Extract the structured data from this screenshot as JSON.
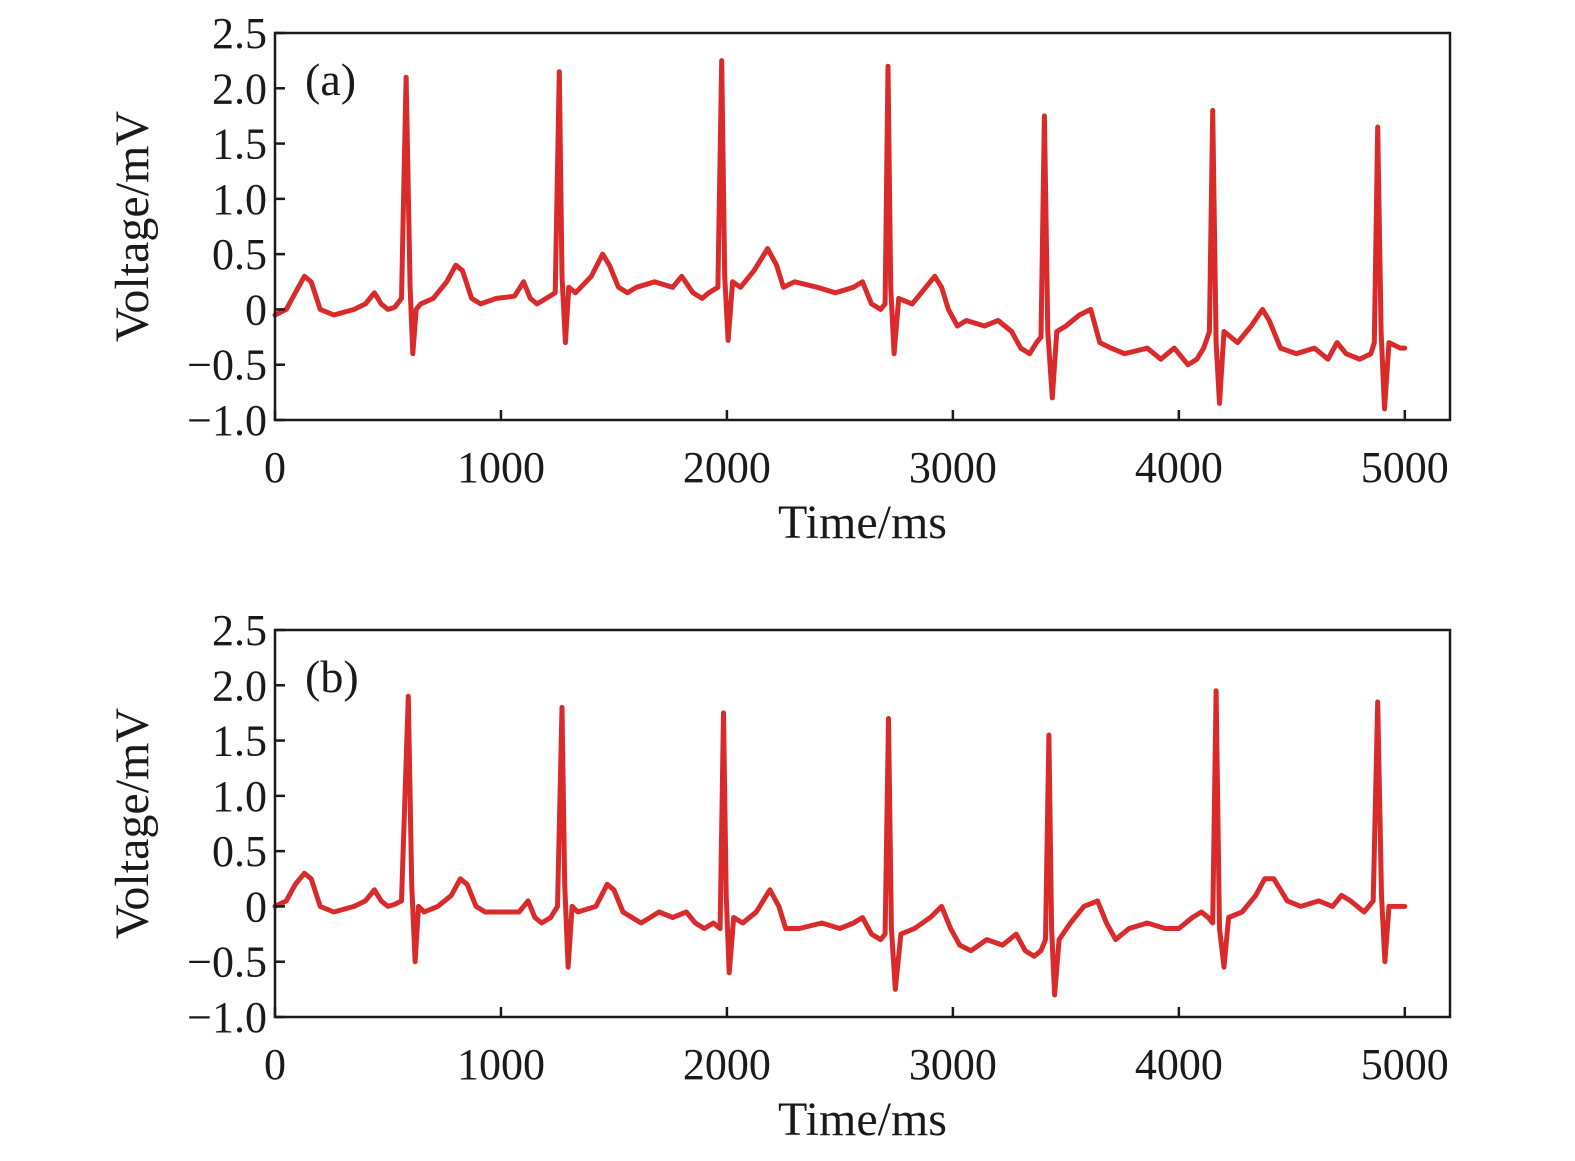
{
  "figure": {
    "background": "#ffffff",
    "line_color": "#d92b2b",
    "axis_color": "#1a1a1a"
  },
  "chart_data": [
    {
      "type": "line",
      "panel_label": "(a)",
      "title": "",
      "xlabel": "Time/ms",
      "ylabel": "Voltage/mV",
      "xlim": [
        0,
        5200
      ],
      "ylim": [
        -1.0,
        2.5
      ],
      "xticks": [
        0,
        1000,
        2000,
        3000,
        4000,
        5000
      ],
      "xtick_labels": [
        "0",
        "1000",
        "2000",
        "3000",
        "4000",
        "5000"
      ],
      "yticks": [
        2.5,
        2.0,
        1.5,
        1.0,
        0.5,
        0,
        -0.5,
        -1.0
      ],
      "ytick_labels": [
        "2.5",
        "2.0",
        "1.5",
        "1.0",
        "0.5",
        "0",
        "−0.5",
        "−1.0"
      ],
      "grid": false,
      "series": [
        {
          "color": "#d92b2b",
          "x": [
            0,
            50,
            90,
            130,
            160,
            200,
            260,
            350,
            400,
            440,
            470,
            500,
            530,
            560,
            580,
            598,
            610,
            625,
            645,
            700,
            760,
            800,
            830,
            870,
            910,
            980,
            1060,
            1100,
            1130,
            1160,
            1200,
            1240,
            1258,
            1270,
            1285,
            1300,
            1330,
            1400,
            1450,
            1480,
            1520,
            1560,
            1600,
            1680,
            1760,
            1800,
            1850,
            1890,
            1920,
            1960,
            1977,
            1990,
            2005,
            2025,
            2060,
            2120,
            2180,
            2220,
            2250,
            2300,
            2400,
            2480,
            2560,
            2600,
            2640,
            2680,
            2700,
            2713,
            2725,
            2740,
            2760,
            2820,
            2880,
            2920,
            2950,
            2980,
            3020,
            3060,
            3140,
            3200,
            3260,
            3300,
            3340,
            3370,
            3390,
            3405,
            3420,
            3440,
            3460,
            3500,
            3560,
            3610,
            3650,
            3700,
            3760,
            3860,
            3920,
            3980,
            4040,
            4080,
            4110,
            4135,
            4150,
            4165,
            4180,
            4200,
            4260,
            4320,
            4370,
            4400,
            4450,
            4520,
            4600,
            4660,
            4700,
            4740,
            4800,
            4850,
            4865,
            4880,
            4895,
            4910,
            4930,
            4980,
            5000
          ],
          "y": [
            -0.05,
            0.0,
            0.15,
            0.3,
            0.25,
            0.0,
            -0.05,
            0.0,
            0.05,
            0.15,
            0.05,
            0.0,
            0.02,
            0.1,
            2.1,
            0.2,
            -0.4,
            0.0,
            0.05,
            0.1,
            0.25,
            0.4,
            0.35,
            0.1,
            0.05,
            0.1,
            0.12,
            0.25,
            0.1,
            0.05,
            0.1,
            0.15,
            2.15,
            0.3,
            -0.3,
            0.2,
            0.15,
            0.3,
            0.5,
            0.4,
            0.2,
            0.15,
            0.2,
            0.25,
            0.2,
            0.3,
            0.15,
            0.1,
            0.15,
            0.2,
            2.25,
            0.3,
            -0.28,
            0.25,
            0.2,
            0.35,
            0.55,
            0.4,
            0.2,
            0.25,
            0.2,
            0.15,
            0.2,
            0.25,
            0.05,
            0.0,
            0.05,
            2.2,
            0.2,
            -0.4,
            0.1,
            0.05,
            0.2,
            0.3,
            0.2,
            0.0,
            -0.15,
            -0.1,
            -0.15,
            -0.1,
            -0.2,
            -0.35,
            -0.4,
            -0.3,
            -0.25,
            1.75,
            -0.2,
            -0.8,
            -0.2,
            -0.15,
            -0.05,
            0.0,
            -0.3,
            -0.35,
            -0.4,
            -0.35,
            -0.45,
            -0.35,
            -0.5,
            -0.45,
            -0.35,
            -0.2,
            1.8,
            -0.3,
            -0.85,
            -0.2,
            -0.3,
            -0.15,
            0.0,
            -0.1,
            -0.35,
            -0.4,
            -0.35,
            -0.45,
            -0.3,
            -0.4,
            -0.45,
            -0.4,
            -0.3,
            1.65,
            -0.2,
            -0.9,
            -0.3,
            -0.35,
            -0.35
          ]
        }
      ]
    },
    {
      "type": "line",
      "panel_label": "(b)",
      "title": "",
      "xlabel": "Time/ms",
      "ylabel": "Voltage/mV",
      "xlim": [
        0,
        5200
      ],
      "ylim": [
        -1.0,
        2.5
      ],
      "xticks": [
        0,
        1000,
        2000,
        3000,
        4000,
        5000
      ],
      "xtick_labels": [
        "0",
        "1000",
        "2000",
        "3000",
        "4000",
        "5000"
      ],
      "yticks": [
        2.5,
        2.0,
        1.5,
        1.0,
        0.5,
        0,
        -0.5,
        -1.0
      ],
      "ytick_labels": [
        "2.5",
        "2.0",
        "1.5",
        "1.0",
        "0.5",
        "0",
        "−0.5",
        "−1.0"
      ],
      "grid": false,
      "series": [
        {
          "color": "#d92b2b",
          "x": [
            0,
            50,
            90,
            130,
            160,
            200,
            260,
            350,
            400,
            440,
            470,
            500,
            530,
            560,
            590,
            605,
            620,
            635,
            660,
            720,
            780,
            820,
            850,
            890,
            930,
            1000,
            1080,
            1120,
            1150,
            1180,
            1220,
            1250,
            1270,
            1282,
            1297,
            1315,
            1340,
            1420,
            1470,
            1500,
            1540,
            1580,
            1620,
            1700,
            1760,
            1820,
            1860,
            1900,
            1940,
            1970,
            1985,
            1997,
            2010,
            2030,
            2070,
            2130,
            2190,
            2230,
            2260,
            2320,
            2420,
            2500,
            2560,
            2600,
            2640,
            2680,
            2700,
            2715,
            2728,
            2745,
            2770,
            2830,
            2900,
            2950,
            2990,
            3030,
            3080,
            3150,
            3220,
            3280,
            3320,
            3360,
            3390,
            3410,
            3425,
            3437,
            3450,
            3470,
            3520,
            3580,
            3640,
            3680,
            3720,
            3780,
            3860,
            3940,
            4000,
            4060,
            4100,
            4130,
            4150,
            4165,
            4180,
            4200,
            4220,
            4280,
            4340,
            4380,
            4420,
            4480,
            4540,
            4620,
            4680,
            4720,
            4760,
            4820,
            4860,
            4880,
            4897,
            4912,
            4930,
            4960,
            5000
          ],
          "y": [
            0.0,
            0.05,
            0.2,
            0.3,
            0.25,
            0.0,
            -0.05,
            0.0,
            0.05,
            0.15,
            0.05,
            0.0,
            0.02,
            0.05,
            1.9,
            0.2,
            -0.5,
            0.0,
            -0.05,
            0.0,
            0.1,
            0.25,
            0.2,
            0.0,
            -0.05,
            -0.05,
            -0.05,
            0.05,
            -0.1,
            -0.15,
            -0.1,
            0.0,
            1.8,
            0.2,
            -0.55,
            0.0,
            -0.05,
            0.0,
            0.2,
            0.15,
            -0.05,
            -0.1,
            -0.15,
            -0.05,
            -0.1,
            -0.05,
            -0.15,
            -0.2,
            -0.15,
            -0.2,
            1.75,
            0.1,
            -0.6,
            -0.1,
            -0.15,
            -0.05,
            0.15,
            0.0,
            -0.2,
            -0.2,
            -0.15,
            -0.2,
            -0.15,
            -0.1,
            -0.25,
            -0.3,
            -0.25,
            1.7,
            -0.2,
            -0.75,
            -0.25,
            -0.2,
            -0.1,
            0.0,
            -0.2,
            -0.35,
            -0.4,
            -0.3,
            -0.35,
            -0.25,
            -0.4,
            -0.45,
            -0.4,
            -0.3,
            1.55,
            -0.2,
            -0.8,
            -0.3,
            -0.15,
            0.0,
            0.05,
            -0.15,
            -0.3,
            -0.2,
            -0.15,
            -0.2,
            -0.2,
            -0.1,
            -0.05,
            -0.1,
            -0.15,
            1.95,
            -0.2,
            -0.55,
            -0.1,
            -0.05,
            0.1,
            0.25,
            0.25,
            0.05,
            0.0,
            0.05,
            0.0,
            0.1,
            0.05,
            -0.05,
            0.05,
            1.85,
            0.1,
            -0.5,
            0.0,
            0.0,
            0.0
          ]
        }
      ]
    }
  ]
}
